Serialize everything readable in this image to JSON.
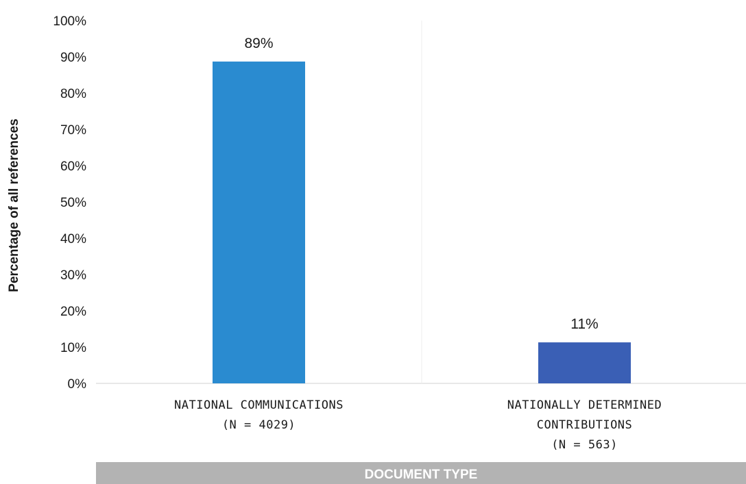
{
  "chart_data": {
    "type": "bar",
    "categories": [
      [
        "NATIONAL COMMUNICATIONS",
        "(N = 4029)"
      ],
      [
        "NATIONALLY DETERMINED",
        "CONTRIBUTIONS",
        "(N = 563)"
      ]
    ],
    "values": [
      88.7,
      11.3
    ],
    "data_labels": [
      "89%",
      "11%"
    ],
    "bar_colors": [
      "#2a8bd0",
      "#3a5fb5"
    ],
    "title": "",
    "ylabel": "Percentage of all references",
    "xlabel": "DOCUMENT TYPE",
    "ylim": [
      0,
      100
    ],
    "yticks": [
      0,
      10,
      20,
      30,
      40,
      50,
      60,
      70,
      80,
      90,
      100
    ],
    "ytick_labels": [
      "0%",
      "10%",
      "20%",
      "30%",
      "40%",
      "50%",
      "60%",
      "70%",
      "80%",
      "90%",
      "100%"
    ],
    "grid": false,
    "legend": "none"
  },
  "colors": {
    "axis": "#d9d9d9",
    "band": "#b3b3b3",
    "text": "#1a1a1a"
  }
}
